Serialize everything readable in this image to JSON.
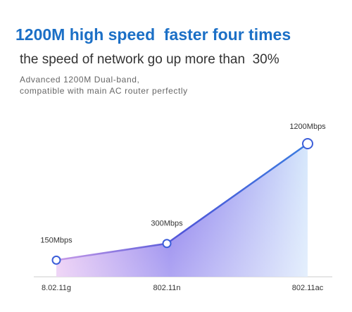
{
  "chart_data": {
    "type": "area",
    "title": "1200M high speed  faster four times",
    "subtitle": "the speed of network go up more than  30%",
    "annotations": [
      "Advanced 1200M Dual-band,",
      "compatible with main AC router perfectly"
    ],
    "categories": [
      "8.02.11g",
      "802.11n",
      "802.11ac"
    ],
    "values": [
      150,
      300,
      1200
    ],
    "value_labels": [
      "150Mbps",
      "300Mbps",
      "1200Mbps"
    ],
    "color": "#3d5fd9"
  }
}
